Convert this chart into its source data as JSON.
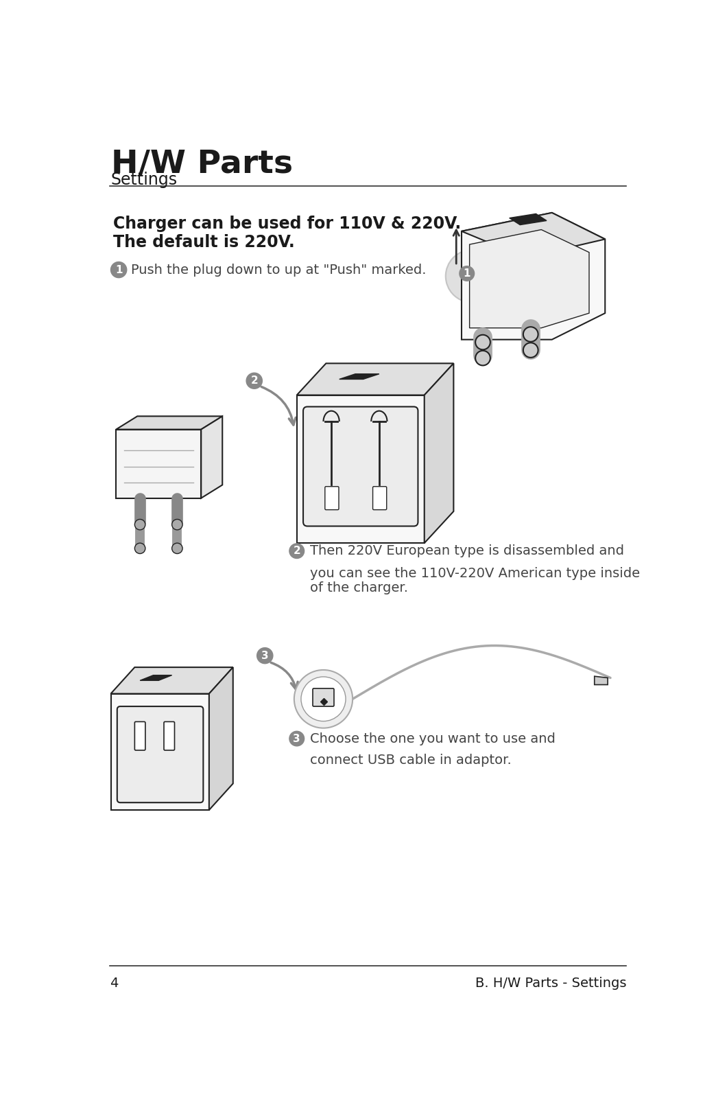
{
  "title": "H/W Parts",
  "subtitle": "Settings",
  "page_number": "4",
  "footer_right": "B. H/W Parts - Settings",
  "intro_bold_line1": "Charger can be used for 110V & 220V.",
  "intro_bold_line2": "The default is 220V.",
  "step1_text": "Push the plug down to up at \"Push\" marked.",
  "step2_text_line1": "Then 220V European type is disassembled and",
  "step2_text_line2": "    you can see the 110V-220V American type inside",
  "step2_text_line3": "    of the charger.",
  "step3_text_line1": "Choose the one you want to use and",
  "step3_text_line2": "    connect USB cable in adaptor.",
  "bg_color": "#ffffff",
  "text_dark": "#1a1a1a",
  "text_mid": "#444444",
  "line_color": "#333333",
  "step_circle_color": "#888888",
  "charger_edge": "#222222",
  "charger_face": "#ffffff",
  "charger_side": "#e8e8e8",
  "charger_dark": "#555555",
  "arrow_color": "#888888"
}
